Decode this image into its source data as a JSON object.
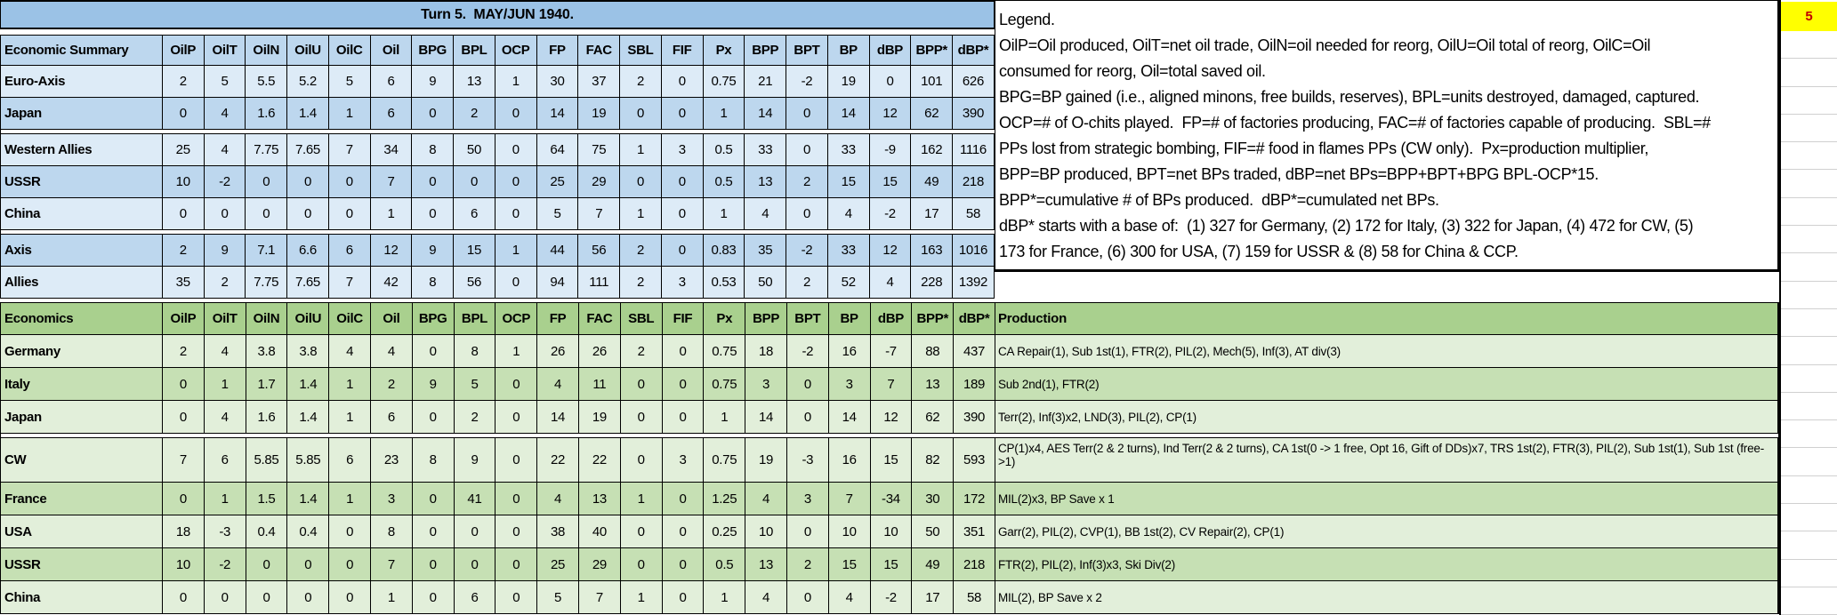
{
  "sheet": {
    "title": "Turn 5.  MAY/JUN 1940.",
    "badge_value": "5"
  },
  "columns": [
    "OilP",
    "OilT",
    "OilN",
    "OilU",
    "OilC",
    "Oil",
    "BPG",
    "BPL",
    "OCP",
    "FP",
    "FAC",
    "SBL",
    "FIF",
    "Px",
    "BPP",
    "BPT",
    "BP",
    "dBP",
    "BPP*",
    "dBP*"
  ],
  "summary_table": {
    "label_header": "Economic Summary",
    "groups": [
      [
        {
          "name": "Euro-Axis",
          "shade": "light",
          "values": [
            2,
            5,
            5.5,
            5.2,
            5,
            6,
            9,
            13,
            1,
            30,
            37,
            2,
            0,
            0.75,
            21,
            -2,
            19,
            0,
            101,
            626
          ]
        },
        {
          "name": "Japan",
          "shade": "medium",
          "values": [
            0,
            4,
            1.6,
            1.4,
            1,
            6,
            0,
            2,
            0,
            14,
            19,
            0,
            0,
            1,
            14,
            0,
            14,
            12,
            62,
            390
          ]
        }
      ],
      [
        {
          "name": "Western Allies",
          "shade": "light",
          "values": [
            25,
            4,
            7.75,
            7.65,
            7,
            34,
            8,
            50,
            0,
            64,
            75,
            1,
            3,
            0.5,
            33,
            0,
            33,
            -9,
            162,
            1116
          ]
        },
        {
          "name": "USSR",
          "shade": "medium",
          "values": [
            10,
            -2,
            0,
            0,
            0,
            7,
            0,
            0,
            0,
            25,
            29,
            0,
            0,
            0.5,
            13,
            2,
            15,
            15,
            49,
            218
          ]
        },
        {
          "name": "China",
          "shade": "light",
          "values": [
            0,
            0,
            0,
            0,
            0,
            1,
            0,
            6,
            0,
            5,
            7,
            1,
            0,
            1,
            4,
            0,
            4,
            -2,
            17,
            58
          ]
        }
      ],
      [
        {
          "name": "Axis",
          "shade": "medium",
          "values": [
            2,
            9,
            7.1,
            6.6,
            6,
            12,
            9,
            15,
            1,
            44,
            56,
            2,
            0,
            0.83,
            35,
            -2,
            33,
            12,
            163,
            1016
          ]
        },
        {
          "name": "Allies",
          "shade": "light",
          "values": [
            35,
            2,
            7.75,
            7.65,
            7,
            42,
            8,
            56,
            0,
            94,
            111,
            2,
            3,
            0.53,
            50,
            2,
            52,
            4,
            228,
            1392
          ]
        }
      ]
    ]
  },
  "economics_table": {
    "label_header": "Economics",
    "production_header": "Production",
    "groups": [
      [
        {
          "name": "Germany",
          "shade": "light",
          "values": [
            2,
            4,
            3.8,
            3.8,
            4,
            4,
            0,
            8,
            1,
            26,
            26,
            2,
            0,
            0.75,
            18,
            -2,
            16,
            -7,
            88,
            437
          ],
          "production": "CA Repair(1), Sub 1st(1), FTR(2), PIL(2), Mech(5), Inf(3), AT div(3)"
        },
        {
          "name": "Italy",
          "shade": "medium",
          "values": [
            0,
            1,
            1.7,
            1.4,
            1,
            2,
            9,
            5,
            0,
            4,
            11,
            0,
            0,
            0.75,
            3,
            0,
            3,
            7,
            13,
            189
          ],
          "production": "Sub 2nd(1), FTR(2)"
        },
        {
          "name": "Japan",
          "shade": "light",
          "values": [
            0,
            4,
            1.6,
            1.4,
            1,
            6,
            0,
            2,
            0,
            14,
            19,
            0,
            0,
            1,
            14,
            0,
            14,
            12,
            62,
            390
          ],
          "production": "Terr(2), Inf(3)x2, LND(3), PIL(2), CP(1)"
        }
      ],
      [
        {
          "name": "CW",
          "shade": "light",
          "tall": true,
          "values": [
            7,
            6,
            5.85,
            5.85,
            6,
            23,
            8,
            9,
            0,
            22,
            22,
            0,
            3,
            0.75,
            19,
            -3,
            16,
            15,
            82,
            593
          ],
          "production": "CP(1)x4, AES Terr(2 & 2 turns), Ind Terr(2 & 2 turns), CA 1st(0 -> 1 free, Opt 16, Gift of DDs)x7, TRS 1st(2), FTR(3), PIL(2), Sub 1st(1), Sub 1st (free->1)"
        },
        {
          "name": "France",
          "shade": "medium",
          "values": [
            0,
            1,
            1.5,
            1.4,
            1,
            3,
            0,
            41,
            0,
            4,
            13,
            1,
            0,
            1.25,
            4,
            3,
            7,
            -34,
            30,
            172
          ],
          "production": "MIL(2)x3, BP Save x 1"
        },
        {
          "name": "USA",
          "shade": "light",
          "values": [
            18,
            -3,
            0.4,
            0.4,
            0,
            8,
            0,
            0,
            0,
            38,
            40,
            0,
            0,
            0.25,
            10,
            0,
            10,
            10,
            50,
            351
          ],
          "production": "Garr(2), PIL(2), CVP(1), BB 1st(2), CV Repair(2), CP(1)"
        },
        {
          "name": "USSR",
          "shade": "medium",
          "values": [
            10,
            -2,
            0,
            0,
            0,
            7,
            0,
            0,
            0,
            25,
            29,
            0,
            0,
            0.5,
            13,
            2,
            15,
            15,
            49,
            218
          ],
          "production": "FTR(2), PIL(2), Inf(3)x3, Ski Div(2)"
        },
        {
          "name": "China",
          "shade": "light",
          "values": [
            0,
            0,
            0,
            0,
            0,
            1,
            0,
            6,
            0,
            5,
            7,
            1,
            0,
            1,
            4,
            0,
            4,
            -2,
            17,
            58
          ],
          "production": "MIL(2), BP Save x 2"
        }
      ]
    ]
  },
  "legend": {
    "lines": [
      "Legend.",
      "OilP=Oil produced, OilT=net oil trade, OilN=oil needed for reorg, OilU=Oil total of reorg, OilC=Oil",
      "consumed for reorg, Oil=total saved oil.",
      "BPG=BP gained (i.e., aligned minons, free builds, reserves), BPL=units destroyed, damaged, captured.",
      "OCP=# of O-chits played.  FP=# of factories producing, FAC=# of factories capable of producing.  SBL=#",
      "PPs lost from strategic bombing, FIF=# food in flames PPs (CW only).  Px=production multiplier,",
      "BPP=BP produced, BPT=net BPs traded, dBP=net BPs=BPP+BPT+BPG BPL-OCP*15.",
      "BPP*=cumulative # of BPs produced.  dBP*=cumulated net BPs.",
      "dBP* starts with a base of:  (1) 327 for Germany, (2) 172 for Italy, (3) 322 for Japan, (4) 472 for CW, (5)",
      "173 for France, (6) 300 for USA, (7) 159 for USSR & (8) 58 for China & CCP."
    ]
  },
  "colors": {
    "title_bg": "#9BC2E6",
    "header_blue": "#BDD7EE",
    "row_blue_light": "#DDEBF7",
    "row_blue_medium": "#BDD7EE",
    "header_green": "#A9D08E",
    "row_green_light": "#E2EFDA",
    "row_green_medium": "#C6E0B4",
    "badge_bg": "#FFFF00",
    "badge_text": "#C00000",
    "border": "#000000"
  }
}
